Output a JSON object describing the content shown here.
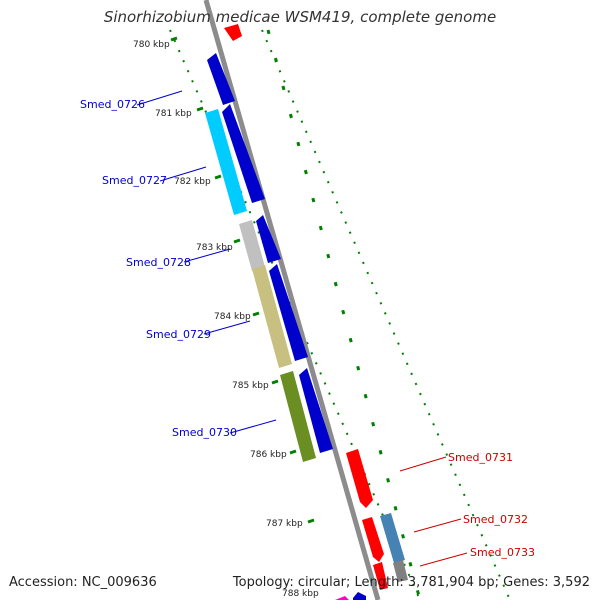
{
  "title": "Sinorhizobium medicae WSM419, complete genome",
  "footer": {
    "accession": "Accession: NC_009636",
    "topology": "Topology: circular; Length: 3,781,904 bp; Genes: 3,592"
  },
  "ticks": [
    "780 kbp",
    "781 kbp",
    "782 kbp",
    "783 kbp",
    "784 kbp",
    "785 kbp",
    "786 kbp",
    "787 kbp",
    "788 kbp"
  ],
  "genes": [
    {
      "name": "Smed_0726",
      "strand": "reverse",
      "color": "#0000cc"
    },
    {
      "name": "Smed_0727",
      "strand": "reverse",
      "color": "#0000cc"
    },
    {
      "name": "Smed_0728",
      "strand": "reverse",
      "color": "#0000cc"
    },
    {
      "name": "Smed_0729",
      "strand": "reverse",
      "color": "#0000cc"
    },
    {
      "name": "Smed_0730",
      "strand": "reverse",
      "color": "#0000cc"
    },
    {
      "name": "Smed_0731",
      "strand": "forward",
      "color": "#cc0000"
    },
    {
      "name": "Smed_0732",
      "strand": "forward",
      "color": "#cc0000"
    },
    {
      "name": "Smed_0733",
      "strand": "forward",
      "color": "#cc0000"
    }
  ],
  "colors": {
    "backbone": "#8c8c8c",
    "reverse_gene": "#0000cc",
    "forward_gene": "#ff0000",
    "label_reverse": "#0000cc",
    "label_forward": "#cc0000",
    "tick_marks": "#008000",
    "cog_cyan": "#00ccff",
    "cog_grey": "#c0c0c0",
    "cog_khaki": "#c8c080",
    "cog_olive": "#6b8e23",
    "cog_steel": "#4682b4"
  }
}
